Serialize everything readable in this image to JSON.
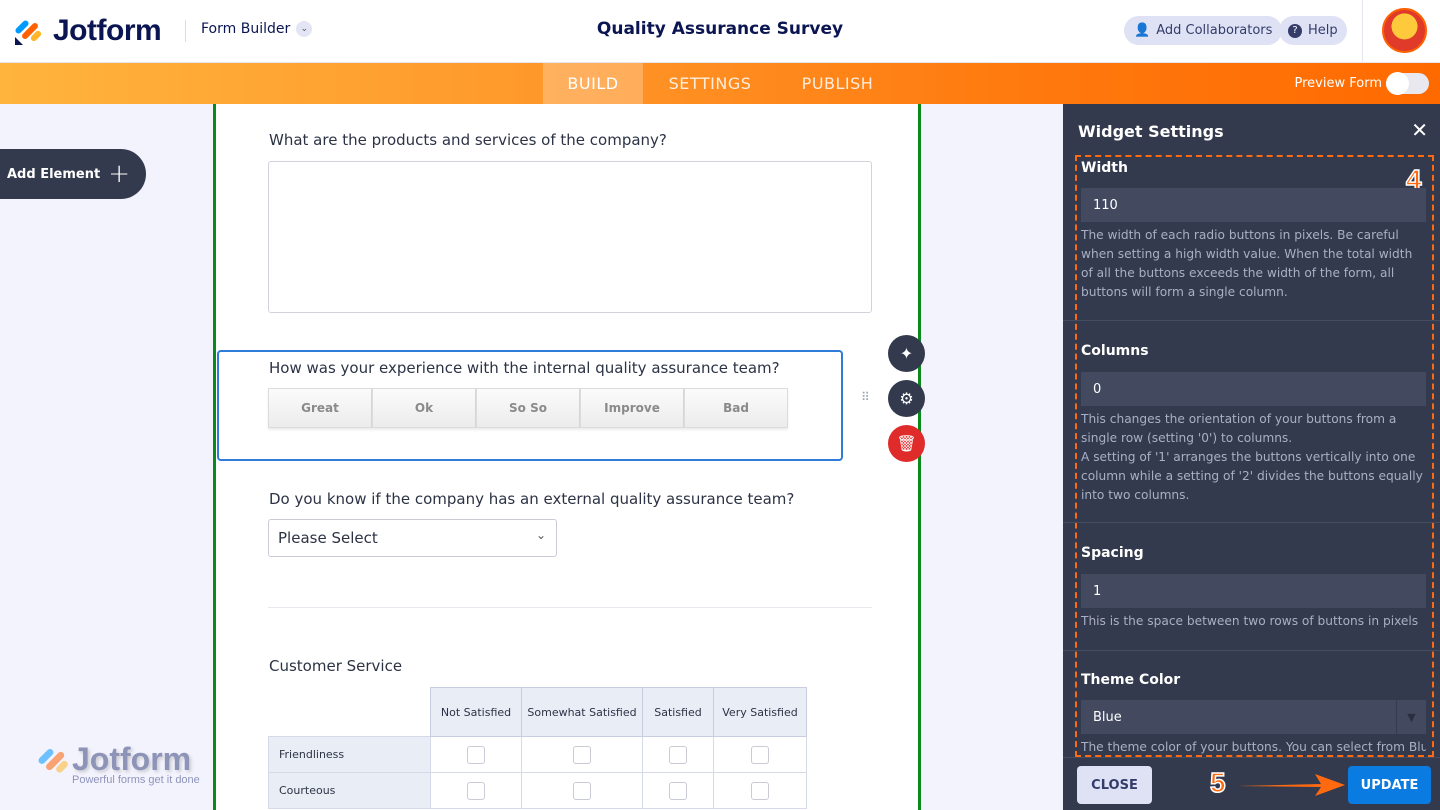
{
  "header": {
    "brand": "Jotform",
    "mode": "Form Builder",
    "title": "Quality Assurance Survey",
    "add_collaborators": "Add Collaborators",
    "help": "Help"
  },
  "nav": {
    "tabs": [
      {
        "label": "BUILD",
        "active": true
      },
      {
        "label": "SETTINGS"
      },
      {
        "label": "PUBLISH"
      }
    ],
    "preview_label": "Preview Form",
    "preview_on": false
  },
  "sidebar": {
    "add_element": "Add Element"
  },
  "form": {
    "q1": "What are the products and services of the company?",
    "q2": "How was your experience with the internal quality assurance team?",
    "q2_options": [
      "Great",
      "Ok",
      "So So",
      "Improve",
      "Bad"
    ],
    "q3": "Do you know if the company has an external quality assurance team?",
    "q3_placeholder": "Please Select",
    "q4": "Customer Service",
    "matrix_columns": [
      "Not Satisfied",
      "Somewhat Satisfied",
      "Satisfied",
      "Very Satisfied"
    ],
    "matrix_rows": [
      "Friendliness",
      "Courteous"
    ]
  },
  "watermark": {
    "brand": "Jotform",
    "tagline": "Powerful forms get it done"
  },
  "panel": {
    "title": "Widget Settings",
    "fields": [
      {
        "label": "Width",
        "value": "110",
        "desc": "The width of each radio buttons in pixels. Be careful when setting a high width value. When the total width of all the buttons exceeds the width of the form, all buttons will form a single column."
      },
      {
        "label": "Columns",
        "value": "0",
        "desc": "This changes the orientation of your buttons from a single row (setting '0') to columns.",
        "desc2": "A setting of '1' arranges the buttons vertically into one column while a setting of '2' divides the buttons equally into two columns."
      },
      {
        "label": "Spacing",
        "value": "1",
        "desc": "This is the space between two rows of buttons in pixels"
      },
      {
        "label": "Theme Color",
        "value": "Blue",
        "desc": "The theme color of your buttons. You can select from Blue"
      }
    ],
    "close": "CLOSE",
    "update": "UPDATE"
  },
  "annotations": {
    "step4": "4",
    "step5": "5"
  },
  "colors": {
    "accent": "#ff6100",
    "nav_start": "#ffb43d",
    "panel_bg": "#343a4d",
    "update_btn": "#0a7be0",
    "selected_border": "#2e7cd8",
    "canvas_border": "#0a8a1a"
  }
}
